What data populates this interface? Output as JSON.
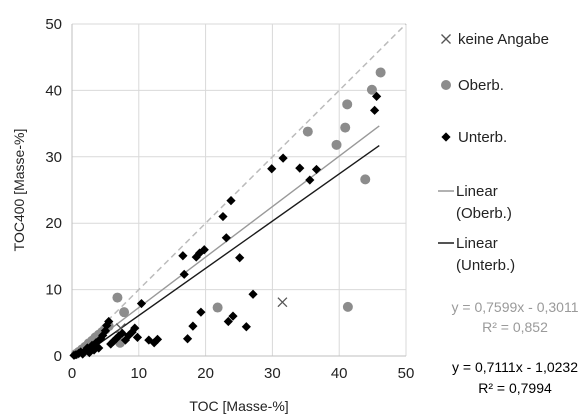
{
  "chart_data": {
    "type": "scatter",
    "xlabel": "TOC [Masse-%]",
    "ylabel": "TOC400 [Masse-%]",
    "xlim": [
      0,
      50
    ],
    "ylim": [
      0,
      50
    ],
    "x_ticks": [
      "0",
      "10",
      "20",
      "30",
      "40",
      "50"
    ],
    "y_ticks": [
      "0",
      "10",
      "20",
      "30",
      "40",
      "50"
    ],
    "grid": true,
    "legend_position": "right",
    "series": [
      {
        "name": "keine Angabe",
        "marker": "x",
        "color": "#555555",
        "points": [
          [
            7.3,
            4.2
          ],
          [
            31.5,
            8.1
          ]
        ]
      },
      {
        "name": "Oberb.",
        "marker": "circle",
        "color": "#8c8c8c",
        "points": [
          [
            0.6,
            0.3
          ],
          [
            1.0,
            0.6
          ],
          [
            1.5,
            1.0
          ],
          [
            2.0,
            1.4
          ],
          [
            2.5,
            1.9
          ],
          [
            3.0,
            2.3
          ],
          [
            3.5,
            2.8
          ],
          [
            4.0,
            3.2
          ],
          [
            4.5,
            3.6
          ],
          [
            5.0,
            4.0
          ],
          [
            5.5,
            4.5
          ],
          [
            6.8,
            8.8
          ],
          [
            7.2,
            2.0
          ],
          [
            7.8,
            6.6
          ],
          [
            21.8,
            7.3
          ],
          [
            35.3,
            33.8
          ],
          [
            39.6,
            31.8
          ],
          [
            40.9,
            34.4
          ],
          [
            41.2,
            37.9
          ],
          [
            41.3,
            7.4
          ],
          [
            43.9,
            26.6
          ],
          [
            44.9,
            40.1
          ],
          [
            46.2,
            42.7
          ]
        ]
      },
      {
        "name": "Unterb.",
        "marker": "diamond",
        "color": "#000000",
        "points": [
          [
            0.3,
            0.1
          ],
          [
            0.6,
            0.2
          ],
          [
            1.0,
            0.4
          ],
          [
            1.3,
            0.6
          ],
          [
            1.6,
            0.3
          ],
          [
            2.0,
            0.8
          ],
          [
            2.3,
            1.2
          ],
          [
            2.6,
            0.5
          ],
          [
            3.0,
            1.6
          ],
          [
            3.3,
            0.9
          ],
          [
            3.6,
            2.0
          ],
          [
            4.0,
            1.2
          ],
          [
            4.3,
            2.6
          ],
          [
            4.6,
            3.1
          ],
          [
            5.0,
            3.8
          ],
          [
            5.2,
            4.6
          ],
          [
            5.5,
            5.2
          ],
          [
            5.8,
            1.8
          ],
          [
            6.2,
            2.2
          ],
          [
            6.6,
            2.6
          ],
          [
            7.0,
            3.0
          ],
          [
            7.5,
            3.4
          ],
          [
            8.0,
            2.4
          ],
          [
            8.5,
            3.1
          ],
          [
            9.0,
            3.6
          ],
          [
            9.4,
            4.2
          ],
          [
            9.8,
            2.8
          ],
          [
            10.4,
            7.9
          ],
          [
            11.5,
            2.4
          ],
          [
            12.3,
            2.0
          ],
          [
            12.8,
            2.5
          ],
          [
            16.6,
            15.1
          ],
          [
            16.8,
            12.3
          ],
          [
            17.3,
            2.6
          ],
          [
            18.1,
            4.5
          ],
          [
            18.6,
            14.9
          ],
          [
            19.1,
            15.5
          ],
          [
            19.3,
            6.6
          ],
          [
            19.8,
            16.0
          ],
          [
            22.6,
            21.0
          ],
          [
            23.1,
            17.8
          ],
          [
            23.4,
            5.2
          ],
          [
            23.8,
            23.4
          ],
          [
            24.1,
            6.0
          ],
          [
            25.1,
            14.8
          ],
          [
            26.1,
            4.4
          ],
          [
            27.1,
            9.3
          ],
          [
            29.9,
            28.2
          ],
          [
            31.6,
            29.8
          ],
          [
            34.1,
            28.3
          ],
          [
            35.6,
            26.5
          ],
          [
            36.6,
            28.1
          ],
          [
            45.3,
            37.0
          ],
          [
            45.6,
            39.1
          ]
        ]
      }
    ],
    "lines": [
      {
        "name": "Linear (Oberb.)",
        "color": "#999999",
        "slope": 0.7599,
        "intercept": -0.3011,
        "x_range": [
          0,
          46
        ]
      },
      {
        "name": "Linear (Unterb.)",
        "color": "#1a1a1a",
        "slope": 0.7111,
        "intercept": -1.0232,
        "x_range": [
          0,
          46
        ]
      }
    ],
    "identity_line": {
      "color": "#bbbbbb",
      "dashed": true,
      "x_range": [
        0,
        50
      ]
    },
    "legend": [
      {
        "label": "keine Angabe",
        "symbol": "x"
      },
      {
        "label": "Oberb.",
        "symbol": "circle"
      },
      {
        "label": "Unterb.",
        "symbol": "diamond"
      },
      {
        "label_lines": [
          "Linear",
          "(Oberb.)"
        ],
        "symbol": "line-grey"
      },
      {
        "label_lines": [
          "Linear",
          "(Unterb.)"
        ],
        "symbol": "line-black"
      }
    ],
    "equations": [
      {
        "text": "y = 0,7599x - 0,3011",
        "r2": "R² = 0,852",
        "color": "#9a9a9a"
      },
      {
        "text": "y = 0,7111x - 1,0232",
        "r2": "R² = 0,7994",
        "color": "#000000"
      }
    ]
  }
}
